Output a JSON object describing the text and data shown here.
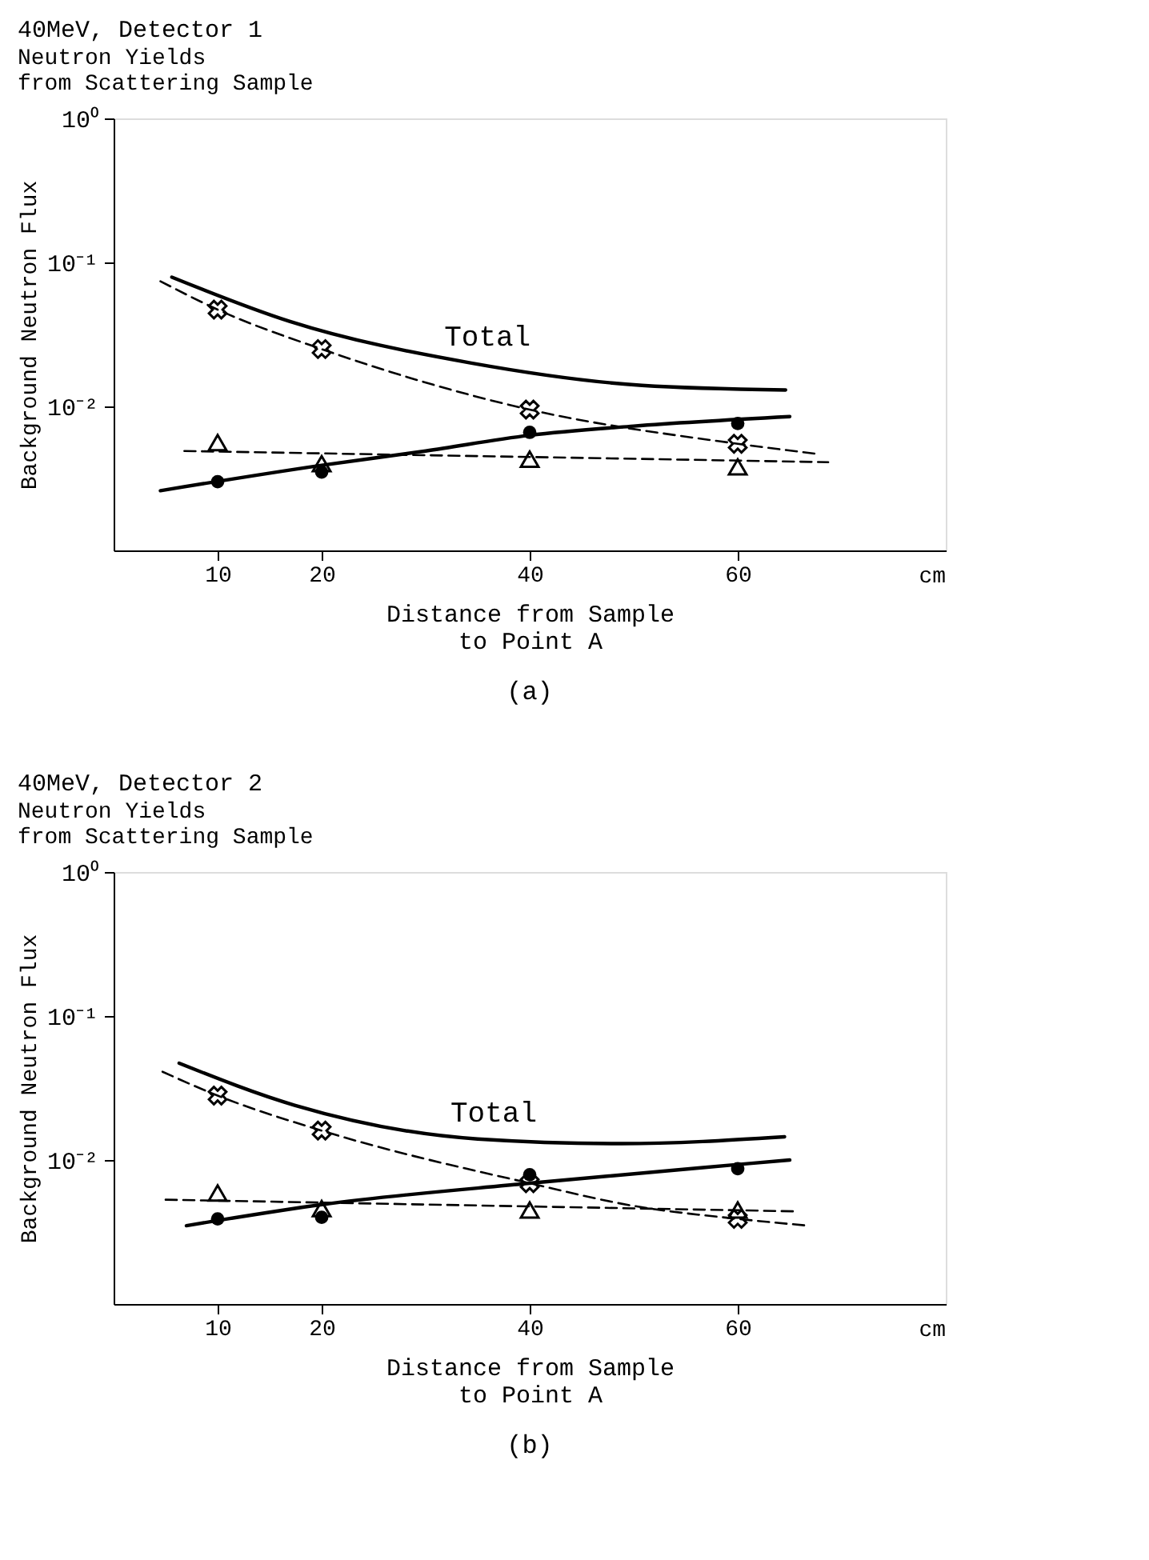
{
  "chart_data": [
    {
      "type": "line",
      "title": "40MeV, Detector 1",
      "subtitle": "Neutron Yields\nfrom Scattering Sample",
      "xlabel": "Distance from Sample\nto Point A",
      "ylabel": "Background Neutron Flux",
      "log": "y",
      "grid": false,
      "legend": false,
      "xlim": [
        0,
        80
      ],
      "xticks": [
        10,
        20,
        40,
        60
      ],
      "ylim": [
        0.001,
        1
      ],
      "yticks": [
        {
          "value": 1,
          "label": "10⁰"
        },
        {
          "value": 0.1,
          "label": "10⁻¹"
        },
        {
          "value": 0.01,
          "label": "10⁻²"
        }
      ],
      "annotations": [
        "cm",
        "(a)"
      ],
      "series": [
        {
          "name": "Total",
          "type": "line",
          "line_style": "solid",
          "color": "#000000",
          "x": [
            5.6,
            16.9,
            34.4,
            50.8,
            64.6
          ],
          "values": [
            0.079,
            0.039,
            0.02,
            0.014,
            0.013
          ]
        },
        {
          "type": "line",
          "line_style": "solid",
          "color": "#000000",
          "x": [
            4.5,
            20,
            30,
            40,
            50,
            65
          ],
          "values": [
            0.0026,
            0.0039,
            0.0049,
            0.0063,
            0.0073,
            0.0085
          ]
        },
        {
          "type": "line",
          "line_style": "dashed",
          "color": "#000000",
          "x": [
            4.5,
            10,
            20,
            40,
            60,
            67.4
          ],
          "values": [
            0.074,
            0.047,
            0.025,
            0.0095,
            0.0055,
            0.0047
          ]
        },
        {
          "type": "line",
          "line_style": "dashed",
          "color": "#000000",
          "x": [
            6.8,
            68.7
          ],
          "values": [
            0.0049,
            0.0041
          ]
        },
        {
          "type": "scatter",
          "marker": "circle",
          "color": "#000000",
          "x": [
            10,
            20,
            40,
            60
          ],
          "values": [
            0.003,
            0.0035,
            0.0066,
            0.0076
          ]
        },
        {
          "type": "scatter",
          "marker": "cross",
          "color": "#000000",
          "x": [
            10,
            20,
            40,
            60
          ],
          "values": [
            0.047,
            0.025,
            0.0095,
            0.0055
          ]
        },
        {
          "type": "scatter",
          "marker": "triangle",
          "color": "#000000",
          "x": [
            10,
            20,
            40,
            60
          ],
          "values": [
            0.0056,
            0.004,
            0.0043,
            0.0038
          ]
        }
      ]
    },
    {
      "type": "line",
      "title": "40MeV, Detector 2",
      "subtitle": "Neutron Yields\nfrom Scattering Sample",
      "xlabel": "Distance from Sample\nto Point A",
      "ylabel": "Background Neutron Flux",
      "log": "y",
      "grid": false,
      "legend": false,
      "xlim": [
        0,
        80
      ],
      "xticks": [
        10,
        20,
        40,
        60
      ],
      "ylim": [
        0.001,
        1
      ],
      "yticks": [
        {
          "value": 1,
          "label": "10⁰"
        },
        {
          "value": 0.1,
          "label": "10⁻¹"
        },
        {
          "value": 0.01,
          "label": "10⁻²"
        }
      ],
      "annotations": [
        "cm",
        "(b)"
      ],
      "series": [
        {
          "name": "Total",
          "type": "line",
          "line_style": "solid",
          "color": "#000000",
          "x": [
            6.3,
            17.4,
            35,
            48.8,
            64.5
          ],
          "values": [
            0.047,
            0.024,
            0.014,
            0.013,
            0.0145
          ]
        },
        {
          "type": "line",
          "line_style": "solid",
          "color": "#000000",
          "x": [
            7,
            10,
            20,
            40,
            60,
            65
          ],
          "values": [
            0.0035,
            0.0038,
            0.0049,
            0.0069,
            0.0093,
            0.01
          ]
        },
        {
          "type": "line",
          "line_style": "dashed",
          "color": "#000000",
          "x": [
            4.7,
            10,
            20,
            40,
            50,
            60,
            66.8
          ],
          "values": [
            0.041,
            0.028,
            0.016,
            0.0069,
            0.0048,
            0.0039,
            0.0035
          ]
        },
        {
          "type": "line",
          "line_style": "dashed",
          "color": "#000000",
          "x": [
            5,
            65.5
          ],
          "values": [
            0.0053,
            0.0044
          ]
        },
        {
          "type": "scatter",
          "marker": "circle",
          "color": "#000000",
          "x": [
            10,
            20,
            40,
            60
          ],
          "values": [
            0.0039,
            0.004,
            0.0079,
            0.0087
          ]
        },
        {
          "type": "scatter",
          "marker": "cross",
          "color": "#000000",
          "x": [
            10,
            20,
            40,
            60
          ],
          "values": [
            0.028,
            0.016,
            0.0069,
            0.0039
          ]
        },
        {
          "type": "scatter",
          "marker": "triangle",
          "color": "#000000",
          "x": [
            10,
            20,
            40,
            60
          ],
          "values": [
            0.0059,
            0.0046,
            0.0045,
            0.0045
          ]
        }
      ]
    }
  ]
}
